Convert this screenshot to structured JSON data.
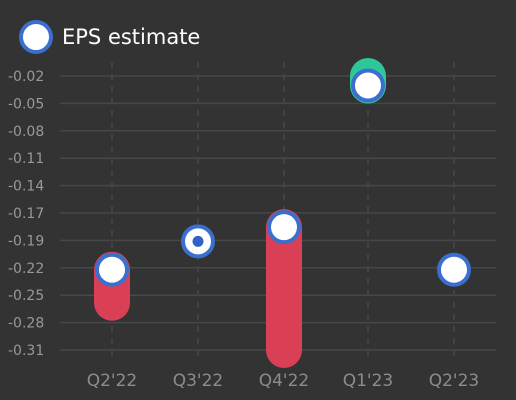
{
  "chart_data": {
    "type": "scatter",
    "title": "",
    "xlabel": "",
    "ylabel": "",
    "categories": [
      "Q2'22",
      "Q3'22",
      "Q4'22",
      "Q1'23",
      "Q2'23"
    ],
    "yticks": [
      "-0.02",
      "-0.05",
      "-0.08",
      "-0.11",
      "-0.14",
      "-0.17",
      "-0.19",
      "-0.22",
      "-0.25",
      "-0.28",
      "-0.31"
    ],
    "ylim": [
      -0.32,
      -0.01
    ],
    "grid": true,
    "legend": {
      "position": "top-left",
      "entries": [
        "EPS estimate"
      ]
    },
    "series": [
      {
        "name": "EPS estimate",
        "values": [
          -0.225,
          -0.195,
          -0.18,
          -0.03,
          -0.225
        ]
      }
    ],
    "actual": [
      -0.26,
      null,
      -0.31,
      -0.02,
      null
    ],
    "colors": {
      "estimate_fill": "#ffffff",
      "estimate_stroke": "#3a6fd0",
      "miss": "#d94055",
      "beat": "#2fc79a",
      "grid": "#474747",
      "inline": "#2f62c9"
    }
  }
}
